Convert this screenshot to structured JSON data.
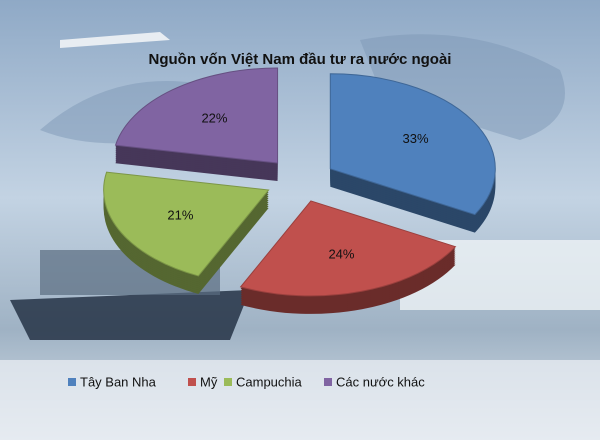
{
  "chart_data": {
    "type": "pie",
    "title": "Nguồn vốn Việt Nam đầu tư ra nước ngoài",
    "categories": [
      "Tây Ban Nha",
      "Mỹ",
      "Campuchia",
      "Các nước khác"
    ],
    "values": [
      33,
      24,
      21,
      22
    ],
    "value_labels": [
      "33%",
      "24%",
      "21%",
      "22%"
    ],
    "colors": [
      "#4f81bd",
      "#c0504d",
      "#9bbb59",
      "#8064a2"
    ],
    "legend": "bottom"
  }
}
